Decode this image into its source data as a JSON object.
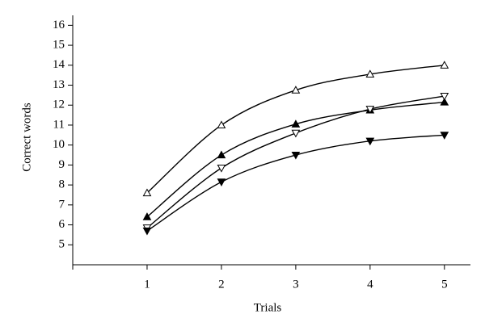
{
  "chart_data": {
    "type": "line",
    "x_label": "Trials",
    "y_label": "Correct words",
    "x": [
      1,
      2,
      3,
      4,
      5
    ],
    "series": [
      {
        "color": "#000000",
        "marker": "triangle-up-open",
        "values": [
          7.6,
          11.0,
          12.75,
          13.55,
          14.0
        ]
      },
      {
        "color": "#000000",
        "marker": "triangle-up-filled",
        "values": [
          6.4,
          9.5,
          11.05,
          11.75,
          12.15
        ]
      },
      {
        "color": "#000000",
        "marker": "triangle-down-open",
        "values": [
          5.85,
          8.85,
          10.6,
          11.8,
          12.45
        ]
      },
      {
        "color": "#000000",
        "marker": "triangle-down-filled",
        "values": [
          5.7,
          8.15,
          9.5,
          10.2,
          10.5
        ]
      }
    ],
    "xlim": [
      0,
      5.35
    ],
    "xticks": [
      1,
      2,
      3,
      4,
      5
    ],
    "ylim": [
      4,
      16.5
    ],
    "yticks": [
      5,
      6,
      7,
      8,
      9,
      10,
      11,
      12,
      13,
      14,
      15,
      16
    ],
    "smooth": true
  }
}
